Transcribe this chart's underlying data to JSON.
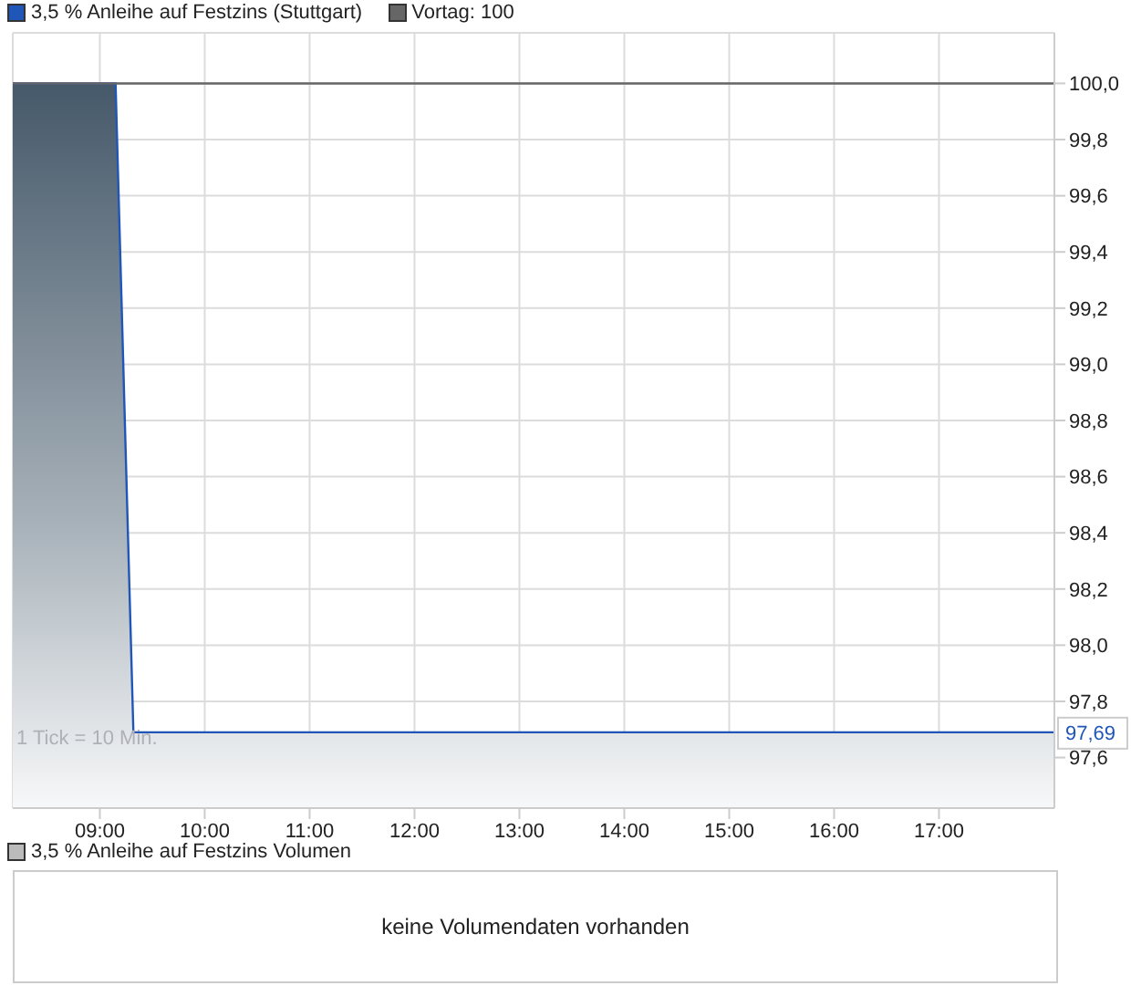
{
  "chart_data": [
    {
      "type": "area",
      "x": [
        8.17,
        9.15,
        9.32,
        18.1
      ],
      "series": [
        {
          "name": "3,5 % Anleihe auf Festzins (Stuttgart)",
          "color": "#1f56b8",
          "values": [
            100,
            100,
            97.69,
            97.69
          ]
        }
      ],
      "xlim": [
        8.17,
        18.1
      ],
      "xticks": [
        {
          "value": 9,
          "label": "09:00"
        },
        {
          "value": 10,
          "label": "10:00"
        },
        {
          "value": 11,
          "label": "11:00"
        },
        {
          "value": 12,
          "label": "12:00"
        },
        {
          "value": 13,
          "label": "13:00"
        },
        {
          "value": 14,
          "label": "14:00"
        },
        {
          "value": 15,
          "label": "15:00"
        },
        {
          "value": 16,
          "label": "16:00"
        },
        {
          "value": 17,
          "label": "17:00"
        }
      ],
      "ylim": [
        97.42,
        100.18
      ],
      "yticks": [
        {
          "value": 97.6,
          "label": "97,6"
        },
        {
          "value": 97.8,
          "label": "97,8"
        },
        {
          "value": 98.0,
          "label": "98,0"
        },
        {
          "value": 98.2,
          "label": "98,2"
        },
        {
          "value": 98.4,
          "label": "98,4"
        },
        {
          "value": 98.6,
          "label": "98,6"
        },
        {
          "value": 98.8,
          "label": "98,8"
        },
        {
          "value": 99.0,
          "label": "99,0"
        },
        {
          "value": 99.2,
          "label": "99,2"
        },
        {
          "value": 99.4,
          "label": "99,4"
        },
        {
          "value": 99.6,
          "label": "99,6"
        },
        {
          "value": 99.8,
          "label": "99,8"
        },
        {
          "value": 100.0,
          "label": "100,0"
        }
      ],
      "ref_lines": [
        {
          "axis": "y",
          "value": 100,
          "label": "Vortag: 100",
          "color": "#666666"
        }
      ],
      "annotations": [
        {
          "text": "97,69",
          "x": 18.1,
          "y": 97.69
        },
        "1 Tick = 10 Min."
      ],
      "grid": true,
      "legend": "top left"
    },
    {
      "type": "other",
      "title": "3,5 % Anleihe auf Festzins Volumen",
      "annotations": [
        "keine Volumendaten vorhanden"
      ]
    }
  ]
}
